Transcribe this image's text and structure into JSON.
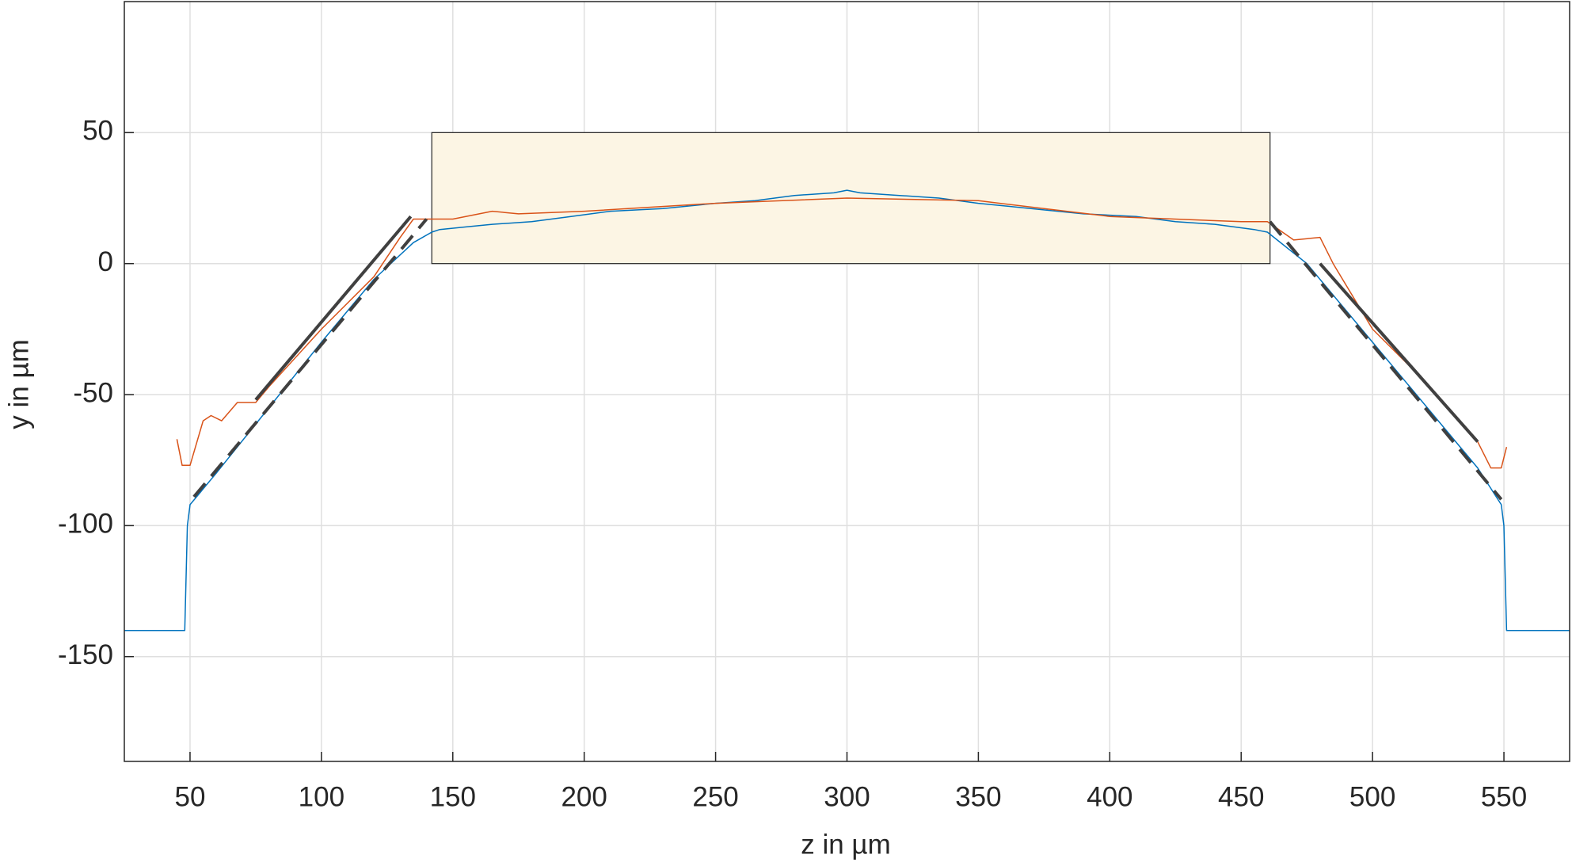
{
  "chart_data": {
    "type": "line",
    "xlabel": "z in µm",
    "ylabel": "y in µm",
    "xlim": [
      25,
      575
    ],
    "ylim": [
      -190,
      100
    ],
    "xticks": [
      50,
      100,
      150,
      200,
      250,
      300,
      350,
      400,
      450,
      500,
      550
    ],
    "yticks": [
      -150,
      -100,
      -50,
      0,
      50
    ],
    "grid": true,
    "region": {
      "xlim": [
        142,
        461
      ],
      "ylim": [
        0,
        50
      ],
      "color": "#fcf5e4"
    },
    "series": [
      {
        "color": "#0072bd",
        "width": 1.5,
        "dash": false,
        "x": [
          25,
          48,
          49,
          50,
          60,
          80,
          100,
          120,
          135,
          142,
          145,
          155,
          165,
          180,
          195,
          210,
          230,
          250,
          265,
          280,
          295,
          300,
          305,
          320,
          335,
          350,
          370,
          390,
          410,
          425,
          440,
          455,
          460,
          475,
          500,
          525,
          540,
          549,
          550,
          551,
          575
        ],
        "values": [
          -140,
          -140,
          -100,
          -92,
          -80,
          -55,
          -30,
          -6,
          8,
          12,
          13,
          14,
          15,
          16,
          18,
          20,
          21,
          23,
          24,
          26,
          27,
          28,
          27,
          26,
          25,
          23,
          21,
          19,
          18,
          16,
          15,
          13,
          12,
          0,
          -30,
          -60,
          -78,
          -92,
          -100,
          -140,
          -140
        ]
      },
      {
        "color": "#d95319",
        "width": 1.5,
        "dash": false,
        "x": [
          45,
          47,
          50,
          55,
          58,
          62,
          68,
          75,
          80,
          100,
          120,
          130,
          135,
          150,
          165,
          175,
          200,
          250,
          300,
          350,
          400,
          450,
          460,
          470,
          480,
          485,
          500,
          520,
          535,
          540,
          545,
          549,
          551
        ],
        "values": [
          -67,
          -77,
          -77,
          -60,
          -58,
          -60,
          -53,
          -53,
          -47,
          -25,
          -5,
          10,
          17,
          17,
          20,
          19,
          20,
          23,
          25,
          24,
          18,
          16,
          16,
          9,
          10,
          0,
          -25,
          -45,
          -62,
          -68,
          -78,
          -78,
          -70
        ]
      },
      {
        "color": "#404040",
        "width": 4,
        "dash": false,
        "x": [
          75,
          134
        ],
        "values": [
          -52,
          18
        ]
      },
      {
        "color": "#404040",
        "width": 4,
        "dash": true,
        "x": [
          51.5,
          140
        ],
        "values": [
          -89,
          17
        ]
      },
      {
        "color": "#404040",
        "width": 4,
        "dash": false,
        "x": [
          480,
          540
        ],
        "values": [
          0,
          -68
        ]
      },
      {
        "color": "#404040",
        "width": 4,
        "dash": true,
        "x": [
          461,
          549
        ],
        "values": [
          16,
          -90
        ]
      }
    ]
  }
}
